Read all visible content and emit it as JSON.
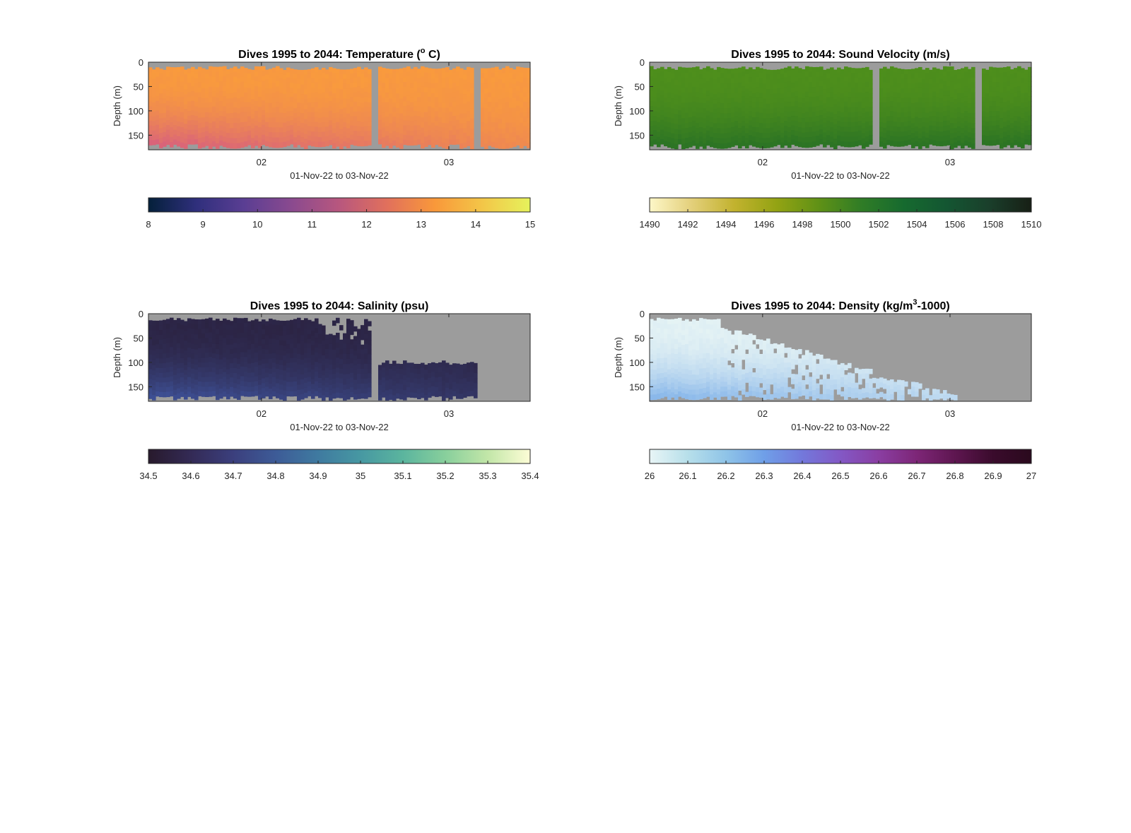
{
  "chart_data": [
    {
      "type": "heatmap",
      "title": "Dives 1995 to 2044: Temperature (",
      "title_sup": "o",
      "title_after": " C)",
      "xlabel": "01-Nov-22 to 03-Nov-22",
      "ylabel": "Depth (m)",
      "x_ticks": [
        "02",
        "03"
      ],
      "y_ticks": [
        0,
        50,
        100,
        150
      ],
      "ylim": [
        0,
        180
      ],
      "colorbar": {
        "ticks": [
          "8",
          "9",
          "10",
          "11",
          "12",
          "13",
          "14",
          "15"
        ],
        "range": [
          8,
          15
        ],
        "colors": [
          "#04203a",
          "#2f2f7c",
          "#5a3e93",
          "#8a4a8f",
          "#b8577e",
          "#e1705c",
          "#f9983a",
          "#f3c648",
          "#e6f25c"
        ]
      },
      "field": {
        "surface": 14.0,
        "deep": 12.6,
        "color_surface": "#f8993f",
        "color_deep": "#d9637a"
      },
      "gaps": [
        0.585,
        0.86
      ]
    },
    {
      "type": "heatmap",
      "title": "Dives 1995 to 2044: Sound Velocity (m/s)",
      "title_sup": "",
      "title_after": "",
      "xlabel": "01-Nov-22 to 03-Nov-22",
      "ylabel": "Depth (m)",
      "x_ticks": [
        "02",
        "03"
      ],
      "y_ticks": [
        0,
        50,
        100,
        150
      ],
      "ylim": [
        0,
        180
      ],
      "colorbar": {
        "ticks": [
          "1490",
          "1492",
          "1494",
          "1496",
          "1498",
          "1500",
          "1502",
          "1504",
          "1506",
          "1508",
          "1510"
        ],
        "range": [
          1490,
          1510
        ],
        "colors": [
          "#fdf7c8",
          "#e3cf7a",
          "#c2b22e",
          "#93a313",
          "#5f9116",
          "#2f7c26",
          "#166a2f",
          "#145632",
          "#1a3f2b",
          "#171f15"
        ]
      },
      "field": {
        "color_surface": "#4d8e1c",
        "color_deep": "#2c7424"
      },
      "gaps": [
        0.585,
        0.86
      ]
    },
    {
      "type": "heatmap",
      "title": "Dives 1995 to 2044: Salinity (psu)",
      "title_sup": "",
      "title_after": "",
      "xlabel": "01-Nov-22 to 03-Nov-22",
      "ylabel": "Depth (m)",
      "x_ticks": [
        "02",
        "03"
      ],
      "y_ticks": [
        0,
        50,
        100,
        150
      ],
      "ylim": [
        0,
        180
      ],
      "colorbar": {
        "ticks": [
          "34.5",
          "34.6",
          "34.7",
          "34.8",
          "34.9",
          "35",
          "35.1",
          "35.2",
          "35.3",
          "35.4"
        ],
        "range": [
          34.5,
          35.4
        ],
        "colors": [
          "#281a2c",
          "#332a55",
          "#3b3f7d",
          "#3d5b97",
          "#3f7aa0",
          "#4798a2",
          "#5bb59e",
          "#88cf9c",
          "#c2e6a8",
          "#fdfdd6"
        ]
      },
      "field": {
        "color_surface": "#2c2546",
        "color_deep": "#3d4e92"
      },
      "gaps": [
        0.585
      ]
    },
    {
      "type": "heatmap",
      "title": "Dives 1995 to 2044: Density (kg/m",
      "title_sup": "3",
      "title_after": "-1000)",
      "xlabel": "01-Nov-22 to 03-Nov-22",
      "ylabel": "Depth (m)",
      "x_ticks": [
        "02",
        "03"
      ],
      "y_ticks": [
        0,
        50,
        100,
        150
      ],
      "ylim": [
        0,
        180
      ],
      "colorbar": {
        "ticks": [
          "26",
          "26.1",
          "26.2",
          "26.3",
          "26.4",
          "26.5",
          "26.6",
          "26.7",
          "26.8",
          "26.9",
          "27"
        ],
        "range": [
          26,
          27
        ],
        "colors": [
          "#e8f5f6",
          "#b7dfea",
          "#8fc4e8",
          "#6f9fe8",
          "#7378db",
          "#8358c5",
          "#8a3ea2",
          "#7d2677",
          "#5e1650",
          "#3a0b2c",
          "#2a0a1d"
        ]
      },
      "field": {
        "color_surface": "#e2f1f4",
        "color_deep": "#8ab8ea"
      },
      "gaps": []
    }
  ]
}
